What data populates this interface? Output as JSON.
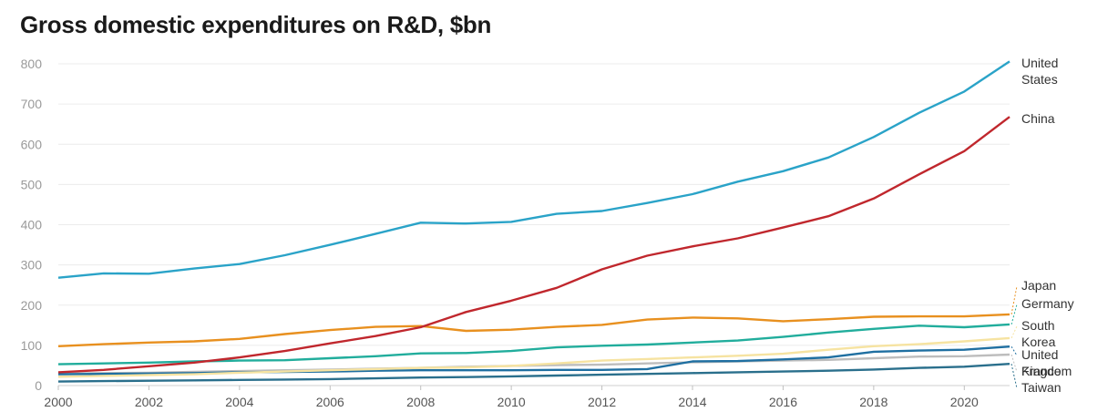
{
  "chart_data": {
    "type": "line",
    "title": "Gross domestic expenditures on R&D, $bn",
    "xlabel": "",
    "ylabel": "",
    "ylim": [
      0,
      800
    ],
    "xlim": [
      2000,
      2021
    ],
    "yticks": [
      0,
      100,
      200,
      300,
      400,
      500,
      600,
      700,
      800
    ],
    "xticks": [
      2000,
      2002,
      2004,
      2006,
      2008,
      2010,
      2012,
      2014,
      2016,
      2018,
      2020
    ],
    "grid": "horizontal",
    "legend": "direct labels at right end of lines",
    "x": [
      2000,
      2001,
      2002,
      2003,
      2004,
      2005,
      2006,
      2007,
      2008,
      2009,
      2010,
      2011,
      2012,
      2013,
      2014,
      2015,
      2016,
      2017,
      2018,
      2019,
      2020,
      2021
    ],
    "series": [
      {
        "key": "us",
        "name": "United States",
        "label_lines": [
          "United",
          "States"
        ],
        "color": "#2aa3c8",
        "values": [
          268,
          279,
          278,
          291,
          302,
          324,
          350,
          377,
          405,
          403,
          407,
          427,
          434,
          454,
          476,
          507,
          533,
          567,
          618,
          678,
          731,
          806
        ]
      },
      {
        "key": "cn",
        "name": "China",
        "label_lines": [
          "China"
        ],
        "color": "#c0272d",
        "values": [
          33,
          39,
          48,
          57,
          70,
          86,
          105,
          123,
          145,
          183,
          211,
          243,
          289,
          323,
          346,
          366,
          393,
          421,
          465,
          525,
          583,
          668
        ]
      },
      {
        "key": "jp",
        "name": "Japan",
        "label_lines": [
          "Japan"
        ],
        "color": "#e8901f",
        "values": [
          98,
          103,
          107,
          110,
          116,
          128,
          138,
          146,
          148,
          136,
          139,
          146,
          151,
          164,
          169,
          167,
          160,
          165,
          171,
          172,
          172,
          177
        ]
      },
      {
        "key": "de",
        "name": "Germany",
        "label_lines": [
          "Germany"
        ],
        "color": "#21ad9c",
        "values": [
          53,
          55,
          57,
          60,
          62,
          63,
          68,
          73,
          80,
          81,
          86,
          95,
          99,
          102,
          107,
          112,
          121,
          132,
          141,
          149,
          145,
          152
        ]
      },
      {
        "key": "kr",
        "name": "South Korea",
        "label_lines": [
          "South",
          "Korea"
        ],
        "color": "#f6e3a1",
        "values": [
          22,
          24,
          26,
          28,
          32,
          35,
          38,
          41,
          44,
          45,
          49,
          55,
          62,
          66,
          70,
          74,
          79,
          89,
          98,
          103,
          110,
          118
        ]
      },
      {
        "key": "uk",
        "name": "United Kingdom",
        "label_lines": [
          "United",
          "Kingdom"
        ],
        "color": "#1f6fa1",
        "values": [
          28,
          29,
          30,
          31,
          33,
          34,
          35,
          37,
          38,
          38,
          38,
          39,
          39,
          41,
          60,
          61,
          65,
          70,
          84,
          87,
          89,
          97
        ]
      },
      {
        "key": "fr",
        "name": "France",
        "label_lines": [
          "France"
        ],
        "color": "#bdbdbd",
        "values": [
          30,
          31,
          32,
          34,
          36,
          38,
          40,
          42,
          44,
          47,
          49,
          51,
          52,
          55,
          58,
          60,
          62,
          64,
          68,
          72,
          73,
          77
        ]
      },
      {
        "key": "tw",
        "name": "Taiwan",
        "label_lines": [
          "Taiwan"
        ],
        "color": "#2a6f8c",
        "values": [
          10,
          11,
          12,
          13,
          14,
          15,
          16,
          18,
          20,
          21,
          23,
          25,
          27,
          29,
          31,
          33,
          35,
          37,
          40,
          44,
          47,
          54
        ]
      }
    ]
  }
}
